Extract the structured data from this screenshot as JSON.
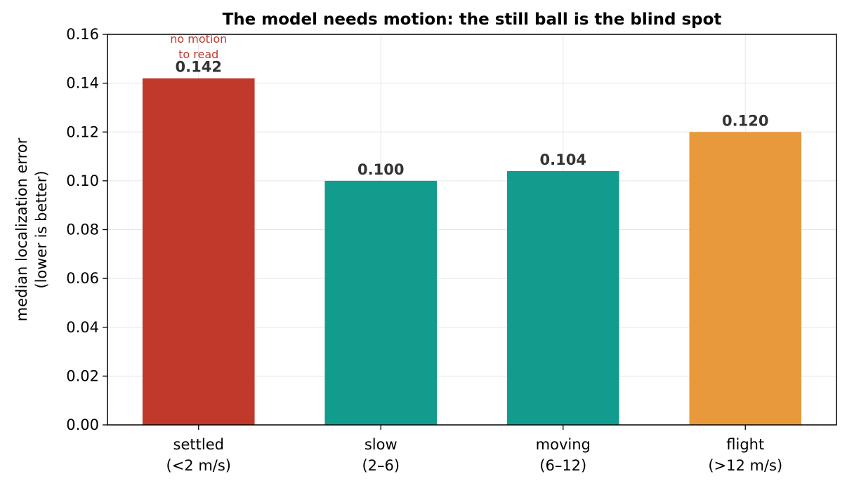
{
  "chart_data": {
    "type": "bar",
    "title": "The model needs motion: the still ball is the blind spot",
    "xlabel": "",
    "ylabel": [
      "median localization error",
      "(lower is better)"
    ],
    "ylim": [
      0,
      0.16
    ],
    "yticks": [
      "0.00",
      "0.02",
      "0.04",
      "0.06",
      "0.08",
      "0.10",
      "0.12",
      "0.14",
      "0.16"
    ],
    "grid": true,
    "categories": [
      [
        "settled",
        "(<2 m/s)"
      ],
      [
        "slow",
        "(2–6)"
      ],
      [
        "moving",
        "(6–12)"
      ],
      [
        "flight",
        "(>12 m/s)"
      ]
    ],
    "values": [
      0.142,
      0.1,
      0.104,
      0.12
    ],
    "value_labels": [
      "0.142",
      "0.100",
      "0.104",
      "0.120"
    ],
    "colors": [
      "#c0392b",
      "#119c8e",
      "#119c8e",
      "#e8993c"
    ],
    "annotation": {
      "category_index": 0,
      "lines": [
        "no motion",
        "to read"
      ],
      "color": "#c0392b"
    }
  }
}
